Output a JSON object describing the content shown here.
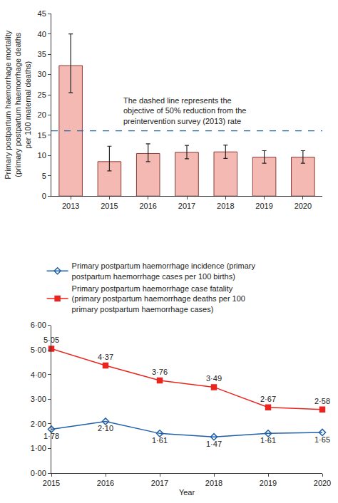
{
  "chart_data": [
    {
      "type": "bar",
      "categories": [
        "2013",
        "2015",
        "2016",
        "2017",
        "2018",
        "2019",
        "2020"
      ],
      "values": [
        32.2,
        8.5,
        10.5,
        10.8,
        10.9,
        9.6,
        9.6
      ],
      "error_plus": [
        7.8,
        3.8,
        2.4,
        1.7,
        1.7,
        1.6,
        1.6
      ],
      "error_minus": [
        6.7,
        2.3,
        2.0,
        1.6,
        1.6,
        1.5,
        1.5
      ],
      "color": "#f4b9b2",
      "ylabel": [
        "Primary postpartum haemorrhage mortality",
        "(primary postpartum haemorrhage deaths",
        "per 100 maternal deaths)"
      ],
      "ylim": [
        0,
        45
      ],
      "yticks": [
        0,
        5,
        10,
        15,
        20,
        25,
        30,
        35,
        40,
        45
      ],
      "grid": false,
      "annotations": [
        {
          "y": 16.1,
          "line_style": "dashed",
          "color": "#1f5fa8",
          "text": [
            "The dashed line represents the",
            "objective of 50% reduction from the",
            "preintervention survey (2013) rate"
          ]
        }
      ]
    },
    {
      "type": "line",
      "x": [
        2015,
        2016,
        2017,
        2018,
        2019,
        2020
      ],
      "xlim": [
        2015,
        2020
      ],
      "xticks": [
        2015,
        2016,
        2017,
        2018,
        2019,
        2020
      ],
      "xlabel": "Year",
      "ylim": [
        0,
        6
      ],
      "yticks": [
        {
          "value": 0,
          "label": "0·00"
        },
        {
          "value": 1,
          "label": "1·00"
        },
        {
          "value": 2,
          "label": "2·00"
        },
        {
          "value": 3,
          "label": "3·00"
        },
        {
          "value": 4,
          "label": "4·00"
        },
        {
          "value": 5,
          "label": "5·00"
        },
        {
          "value": 6,
          "label": "6·00"
        }
      ],
      "grid": false,
      "legend": "top",
      "data_labels": true,
      "series": [
        {
          "name": "Primary postpartum haemorrhage incidence (primary postpartum haemorrhage cases per 100 births)",
          "color": "#1f5fa8",
          "marker": "diamond-open",
          "line_style": "solid",
          "values": [
            1.78,
            2.1,
            1.61,
            1.47,
            1.61,
            1.65
          ],
          "value_labels": [
            "1·78",
            "2·10",
            "1·61",
            "1·47",
            "1·61",
            "1·65"
          ]
        },
        {
          "name": "Primary postpartum haemorrhage case fatality (primary postpartum haemorrhage deaths per 100 primary postpartum haemorrhage cases)",
          "color": "#e8251f",
          "marker": "square",
          "line_style": "solid",
          "values": [
            5.05,
            4.37,
            3.76,
            3.49,
            2.67,
            2.58
          ],
          "value_labels": [
            "5·05",
            "4·37",
            "3·76",
            "3·49",
            "2·67",
            "2·58"
          ]
        }
      ]
    }
  ]
}
